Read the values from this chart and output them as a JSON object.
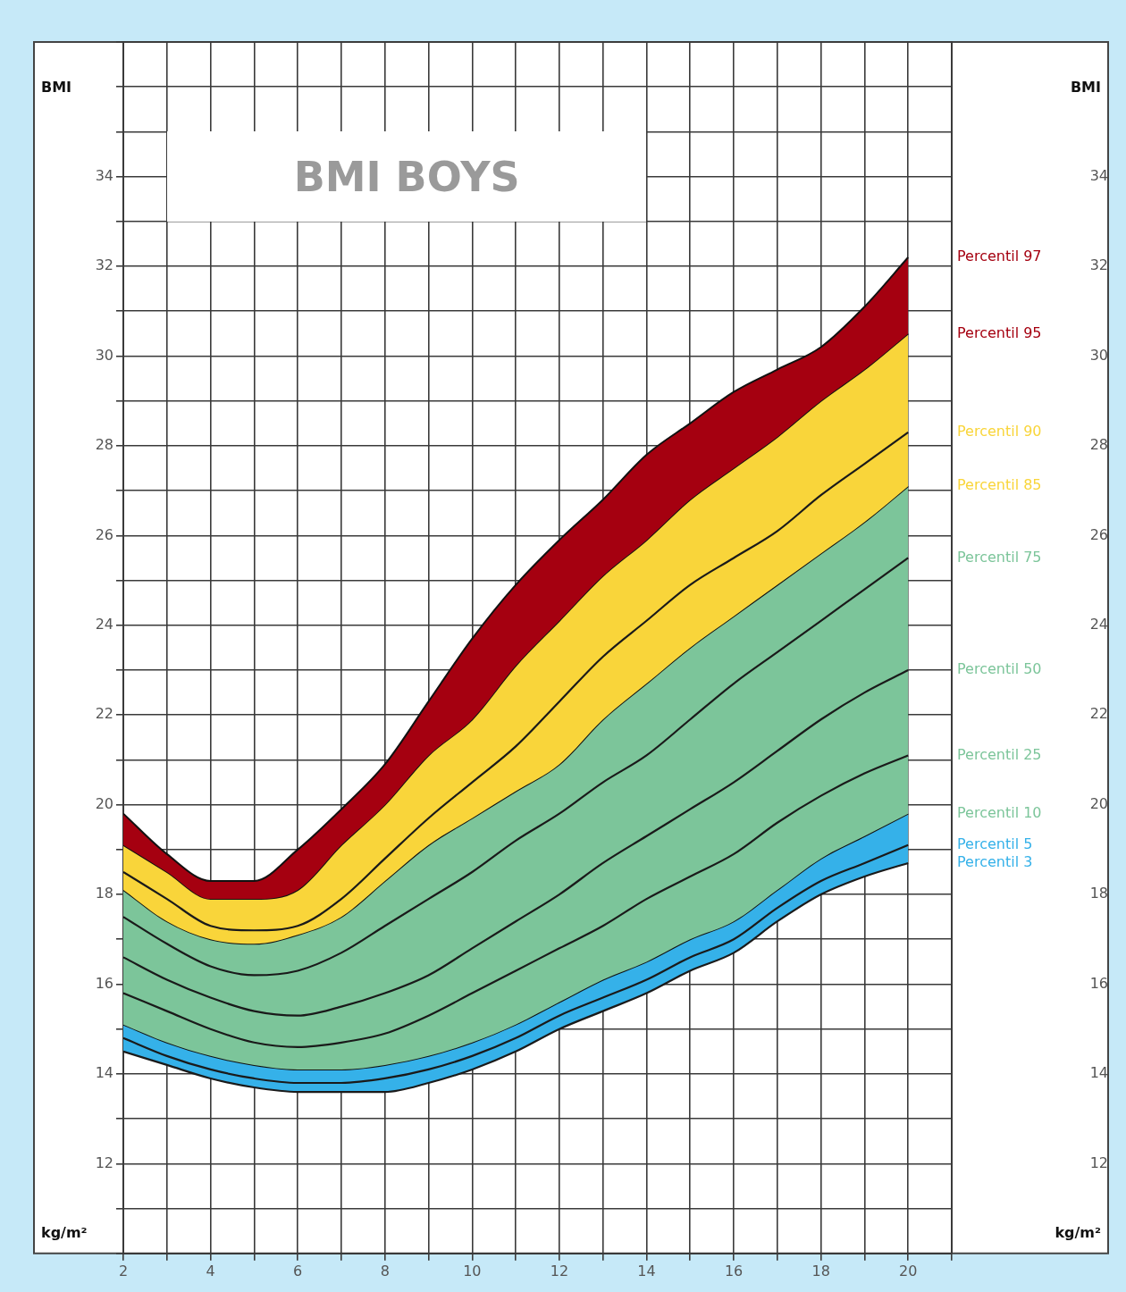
{
  "chart_data": {
    "type": "line",
    "title": "BMI BOYS",
    "annotations": [
      "BMI",
      "BMI",
      "kg/m²",
      "kg/m²"
    ],
    "xlim": [
      2,
      21
    ],
    "xticks": [
      2,
      {
        "value": 3,
        "label": null
      },
      4,
      {
        "value": 5,
        "label": null
      },
      6,
      {
        "value": 7,
        "label": null
      },
      8,
      {
        "value": 9,
        "label": null
      },
      10,
      {
        "value": 11,
        "label": null
      },
      12,
      {
        "value": 13,
        "label": null
      },
      14,
      {
        "value": 15,
        "label": null
      },
      16,
      {
        "value": 17,
        "label": null
      },
      18,
      {
        "value": 19,
        "label": null
      },
      20,
      {
        "value": 21,
        "label": null
      }
    ],
    "ylim": [
      10,
      37
    ],
    "yticks": [
      {
        "value": 10,
        "label": null
      },
      {
        "value": 11,
        "label": null
      },
      12,
      {
        "value": 13,
        "label": null
      },
      14,
      {
        "value": 15,
        "label": null
      },
      16,
      {
        "value": 17,
        "label": null
      },
      18,
      {
        "value": 19,
        "label": null
      },
      20,
      {
        "value": 21,
        "label": null
      },
      22,
      {
        "value": 23,
        "label": null
      },
      24,
      {
        "value": 25,
        "label": null
      },
      26,
      {
        "value": 27,
        "label": null
      },
      28,
      {
        "value": 29,
        "label": null
      },
      30,
      {
        "value": 31,
        "label": null
      },
      32,
      {
        "value": 33,
        "label": null
      },
      34,
      {
        "value": 35,
        "label": null
      },
      {
        "value": 36,
        "label": null
      },
      {
        "value": 37,
        "label": null
      }
    ],
    "y2lim": [
      10,
      37
    ],
    "y2ticks": [
      12,
      14,
      16,
      18,
      20,
      22,
      24,
      26,
      28,
      30,
      32,
      34
    ],
    "grid": true,
    "legend": false,
    "marker": "none",
    "line_style": "solid",
    "x": [
      2,
      3,
      4,
      5,
      6,
      7,
      8,
      9,
      10,
      11,
      12,
      13,
      14,
      15,
      16,
      17,
      18,
      19,
      20
    ],
    "series": [
      {
        "name": "Percentil 97",
        "type": "area",
        "color": "#a50010",
        "values": [
          19.8,
          18.9,
          18.3,
          18.3,
          19.0,
          19.9,
          20.9,
          22.3,
          23.7,
          24.9,
          25.9,
          26.8,
          27.8,
          28.5,
          29.2,
          29.7,
          30.2,
          31.1,
          32.2
        ]
      },
      {
        "name": "Percentil 95",
        "type": "area",
        "color": "#f9d53a",
        "values": [
          19.1,
          18.5,
          17.9,
          17.9,
          18.1,
          19.1,
          20.0,
          21.1,
          21.9,
          23.1,
          24.1,
          25.1,
          25.9,
          26.8,
          27.5,
          28.2,
          29.0,
          29.7,
          30.5
        ]
      },
      {
        "name": "Percentil 90",
        "color": "#1a1a1a",
        "values": [
          18.5,
          17.9,
          17.3,
          17.2,
          17.3,
          17.9,
          18.8,
          19.7,
          20.5,
          21.3,
          22.3,
          23.3,
          24.1,
          24.9,
          25.5,
          26.1,
          26.9,
          27.6,
          28.3
        ]
      },
      {
        "name": "Percentil 85",
        "type": "area",
        "color": "#7cc59a",
        "values": [
          18.1,
          17.4,
          17.0,
          16.9,
          17.1,
          17.5,
          18.3,
          19.1,
          19.7,
          20.3,
          20.9,
          21.9,
          22.7,
          23.5,
          24.2,
          24.9,
          25.6,
          26.3,
          27.1
        ]
      },
      {
        "name": "Percentil 75",
        "color": "#1a1a1a",
        "values": [
          17.5,
          16.9,
          16.4,
          16.2,
          16.3,
          16.7,
          17.3,
          17.9,
          18.5,
          19.2,
          19.8,
          20.5,
          21.1,
          21.9,
          22.7,
          23.4,
          24.1,
          24.8,
          25.5
        ]
      },
      {
        "name": "Percentil 50",
        "color": "#1a1a1a",
        "values": [
          16.6,
          16.1,
          15.7,
          15.4,
          15.3,
          15.5,
          15.8,
          16.2,
          16.8,
          17.4,
          18.0,
          18.7,
          19.3,
          19.9,
          20.5,
          21.2,
          21.9,
          22.5,
          23.0
        ]
      },
      {
        "name": "Percentil 25",
        "color": "#1a1a1a",
        "values": [
          15.8,
          15.4,
          15.0,
          14.7,
          14.6,
          14.7,
          14.9,
          15.3,
          15.8,
          16.3,
          16.8,
          17.3,
          17.9,
          18.4,
          18.9,
          19.6,
          20.2,
          20.7,
          21.1
        ]
      },
      {
        "name": "Percentil 10",
        "type": "area",
        "color": "#35b1e9",
        "values": [
          15.1,
          14.7,
          14.4,
          14.2,
          14.1,
          14.1,
          14.2,
          14.4,
          14.7,
          15.1,
          15.6,
          16.1,
          16.5,
          17.0,
          17.4,
          18.1,
          18.8,
          19.3,
          19.8
        ]
      },
      {
        "name": "Percentil 5",
        "color": "#1a1a1a",
        "values": [
          14.8,
          14.4,
          14.1,
          13.9,
          13.8,
          13.8,
          13.9,
          14.1,
          14.4,
          14.8,
          15.3,
          15.7,
          16.1,
          16.6,
          17.0,
          17.7,
          18.3,
          18.7,
          19.1
        ]
      },
      {
        "name": "Percentil 3",
        "color": "#1a1a1a",
        "values": [
          14.5,
          14.2,
          13.9,
          13.7,
          13.6,
          13.6,
          13.6,
          13.8,
          14.1,
          14.5,
          15.0,
          15.4,
          15.8,
          16.3,
          16.7,
          17.4,
          18.0,
          18.4,
          18.7
        ]
      }
    ]
  }
}
